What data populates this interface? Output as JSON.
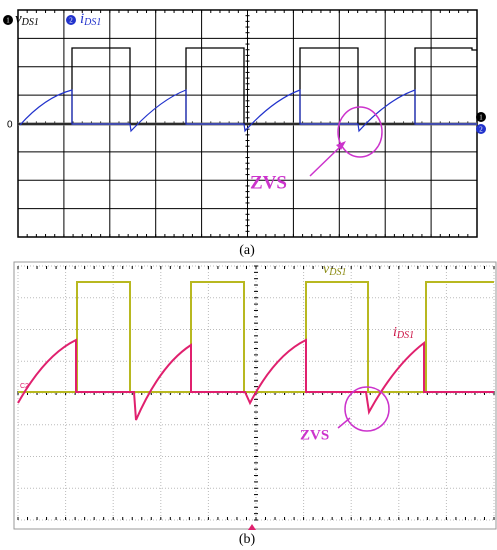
{
  "figure": {
    "panel_a": {
      "legend": [
        {
          "marker": "1",
          "symbol": "v",
          "subscript": "DS1"
        },
        {
          "marker": "2",
          "symbol": "i",
          "subscript": "DS1"
        }
      ],
      "zero_label": "0",
      "right_markers": [
        "1",
        "2"
      ],
      "annotation": "ZVS",
      "caption": "(a)"
    },
    "panel_b": {
      "voltage_label": {
        "symbol": "v",
        "subscript": "DS1"
      },
      "current_label": {
        "symbol": "i",
        "subscript": "DS1"
      },
      "channel_label": "C2",
      "annotation": "ZVS",
      "caption": "(b)"
    }
  }
}
